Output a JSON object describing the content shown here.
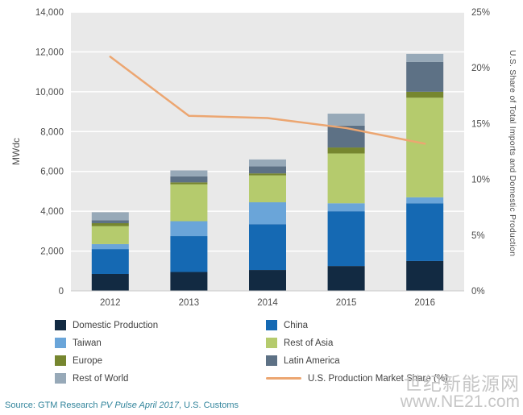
{
  "chart_data": {
    "type": "bar",
    "stacked": true,
    "title": "",
    "categories": [
      "2012",
      "2013",
      "2014",
      "2015",
      "2016"
    ],
    "series": [
      {
        "name": "Domestic Production",
        "color": "#122a42",
        "values": [
          850,
          950,
          1050,
          1250,
          1500
        ]
      },
      {
        "name": "China",
        "color": "#1569b3",
        "values": [
          1250,
          1800,
          2300,
          2750,
          2900
        ]
      },
      {
        "name": "Taiwan",
        "color": "#6aa5d9",
        "values": [
          250,
          750,
          1100,
          400,
          300
        ]
      },
      {
        "name": "Rest of Asia",
        "color": "#b5cb6d",
        "values": [
          900,
          1850,
          1350,
          2500,
          5000
        ]
      },
      {
        "name": "Europe",
        "color": "#76862f",
        "values": [
          150,
          100,
          100,
          300,
          300
        ]
      },
      {
        "name": "Latin America",
        "color": "#5d7185",
        "values": [
          150,
          300,
          350,
          1100,
          1500
        ]
      },
      {
        "name": "Rest of World",
        "color": "#97a9b8",
        "values": [
          400,
          300,
          350,
          600,
          400
        ]
      }
    ],
    "line_series": {
      "name": "U.S. Production Market Share (%)",
      "color": "#eca671",
      "values": [
        21.0,
        15.7,
        15.5,
        14.6,
        13.2
      ]
    },
    "ylabel_left": "MWdc",
    "ylabel_right": "U.S. Share of Total Imports and Domestic Production",
    "ylim_left": [
      0,
      14000
    ],
    "ylim_right": [
      0,
      25
    ],
    "yticks_left": [
      "0",
      "2,000",
      "4,000",
      "6,000",
      "8,000",
      "10,000",
      "12,000",
      "14,000"
    ],
    "yticks_right": [
      "0%",
      "5%",
      "10%",
      "15%",
      "20%",
      "25%"
    ],
    "plot_background": "#e9e9e9",
    "gridline_color": "#ffffff",
    "legend_position": "bottom"
  },
  "source": {
    "prefix": "Source: GTM Research ",
    "italic": "PV Pulse April 2017",
    "suffix": ", U.S. Customs"
  },
  "watermark": {
    "line1": "世纪新能源网",
    "line2": "www.NE21.com"
  }
}
